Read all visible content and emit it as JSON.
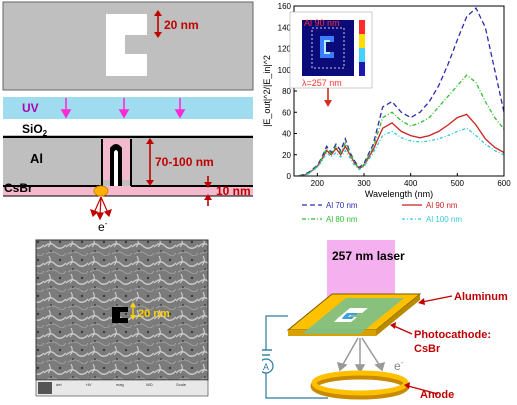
{
  "top_schematic": {
    "dim_gap": "20 nm",
    "uv": "UV",
    "sio2": "SiO",
    "sio2_sub": "2",
    "al": "Al",
    "dim_depth": "70-100 nm",
    "csbr": "CsBr",
    "dim_thickness": "10 nm",
    "electron": "e",
    "electron_sup": "-"
  },
  "chart": {
    "inset_label": "Al 90 nm",
    "inset_lambda": "λ=257 nm",
    "colors": {
      "al70": "#2b2bb0",
      "al80": "#2fbf2f",
      "al90": "#cc2222",
      "al100": "#33c9d6"
    }
  },
  "chart_data": {
    "type": "line",
    "xlabel": "Wavelength (nm)",
    "ylabel": "|E_out|^2/|E_in|^2",
    "xlim": [
      150,
      600
    ],
    "ylim": [
      0,
      160
    ],
    "xticks": [
      200,
      300,
      400,
      500,
      600
    ],
    "yticks": [
      0,
      20,
      40,
      60,
      80,
      100,
      120,
      140,
      160
    ],
    "x": [
      160,
      180,
      200,
      210,
      220,
      230,
      240,
      250,
      260,
      270,
      280,
      290,
      300,
      320,
      340,
      360,
      380,
      400,
      420,
      440,
      460,
      480,
      500,
      520,
      540,
      560,
      580,
      600
    ],
    "series": [
      {
        "name": "Al 70 nm",
        "values": [
          0,
          3,
          10,
          18,
          28,
          22,
          30,
          24,
          35,
          22,
          14,
          8,
          12,
          30,
          65,
          70,
          60,
          55,
          60,
          70,
          85,
          105,
          128,
          150,
          158,
          140,
          100,
          60
        ]
      },
      {
        "name": "Al 90 nm",
        "values": [
          0,
          2,
          9,
          16,
          24,
          20,
          26,
          20,
          28,
          20,
          12,
          7,
          10,
          25,
          45,
          50,
          42,
          38,
          36,
          38,
          42,
          48,
          55,
          58,
          48,
          35,
          27,
          22
        ]
      },
      {
        "name": "Al 80 nm",
        "values": [
          0,
          2,
          9,
          17,
          26,
          21,
          28,
          22,
          31,
          21,
          13,
          7,
          11,
          27,
          55,
          60,
          52,
          47,
          50,
          55,
          65,
          75,
          85,
          95,
          88,
          70,
          55,
          44
        ]
      },
      {
        "name": "Al 100 nm",
        "values": [
          0,
          2,
          8,
          14,
          22,
          18,
          22,
          18,
          24,
          17,
          10,
          6,
          9,
          22,
          38,
          42,
          36,
          33,
          32,
          33,
          35,
          38,
          42,
          45,
          38,
          30,
          24,
          20
        ]
      }
    ]
  },
  "sem": {
    "scale_label": "20 nm",
    "footer": [
      "det",
      "HV",
      "mag",
      "WD",
      "Scale"
    ]
  },
  "setup": {
    "laser": "257 nm laser",
    "aluminum": "Aluminum",
    "photocathode_line1": "Photocathode:",
    "photocathode_line2": "CsBr",
    "anode": "Anode",
    "ammeter": "A",
    "electron": "e",
    "electron_sup": "-"
  }
}
